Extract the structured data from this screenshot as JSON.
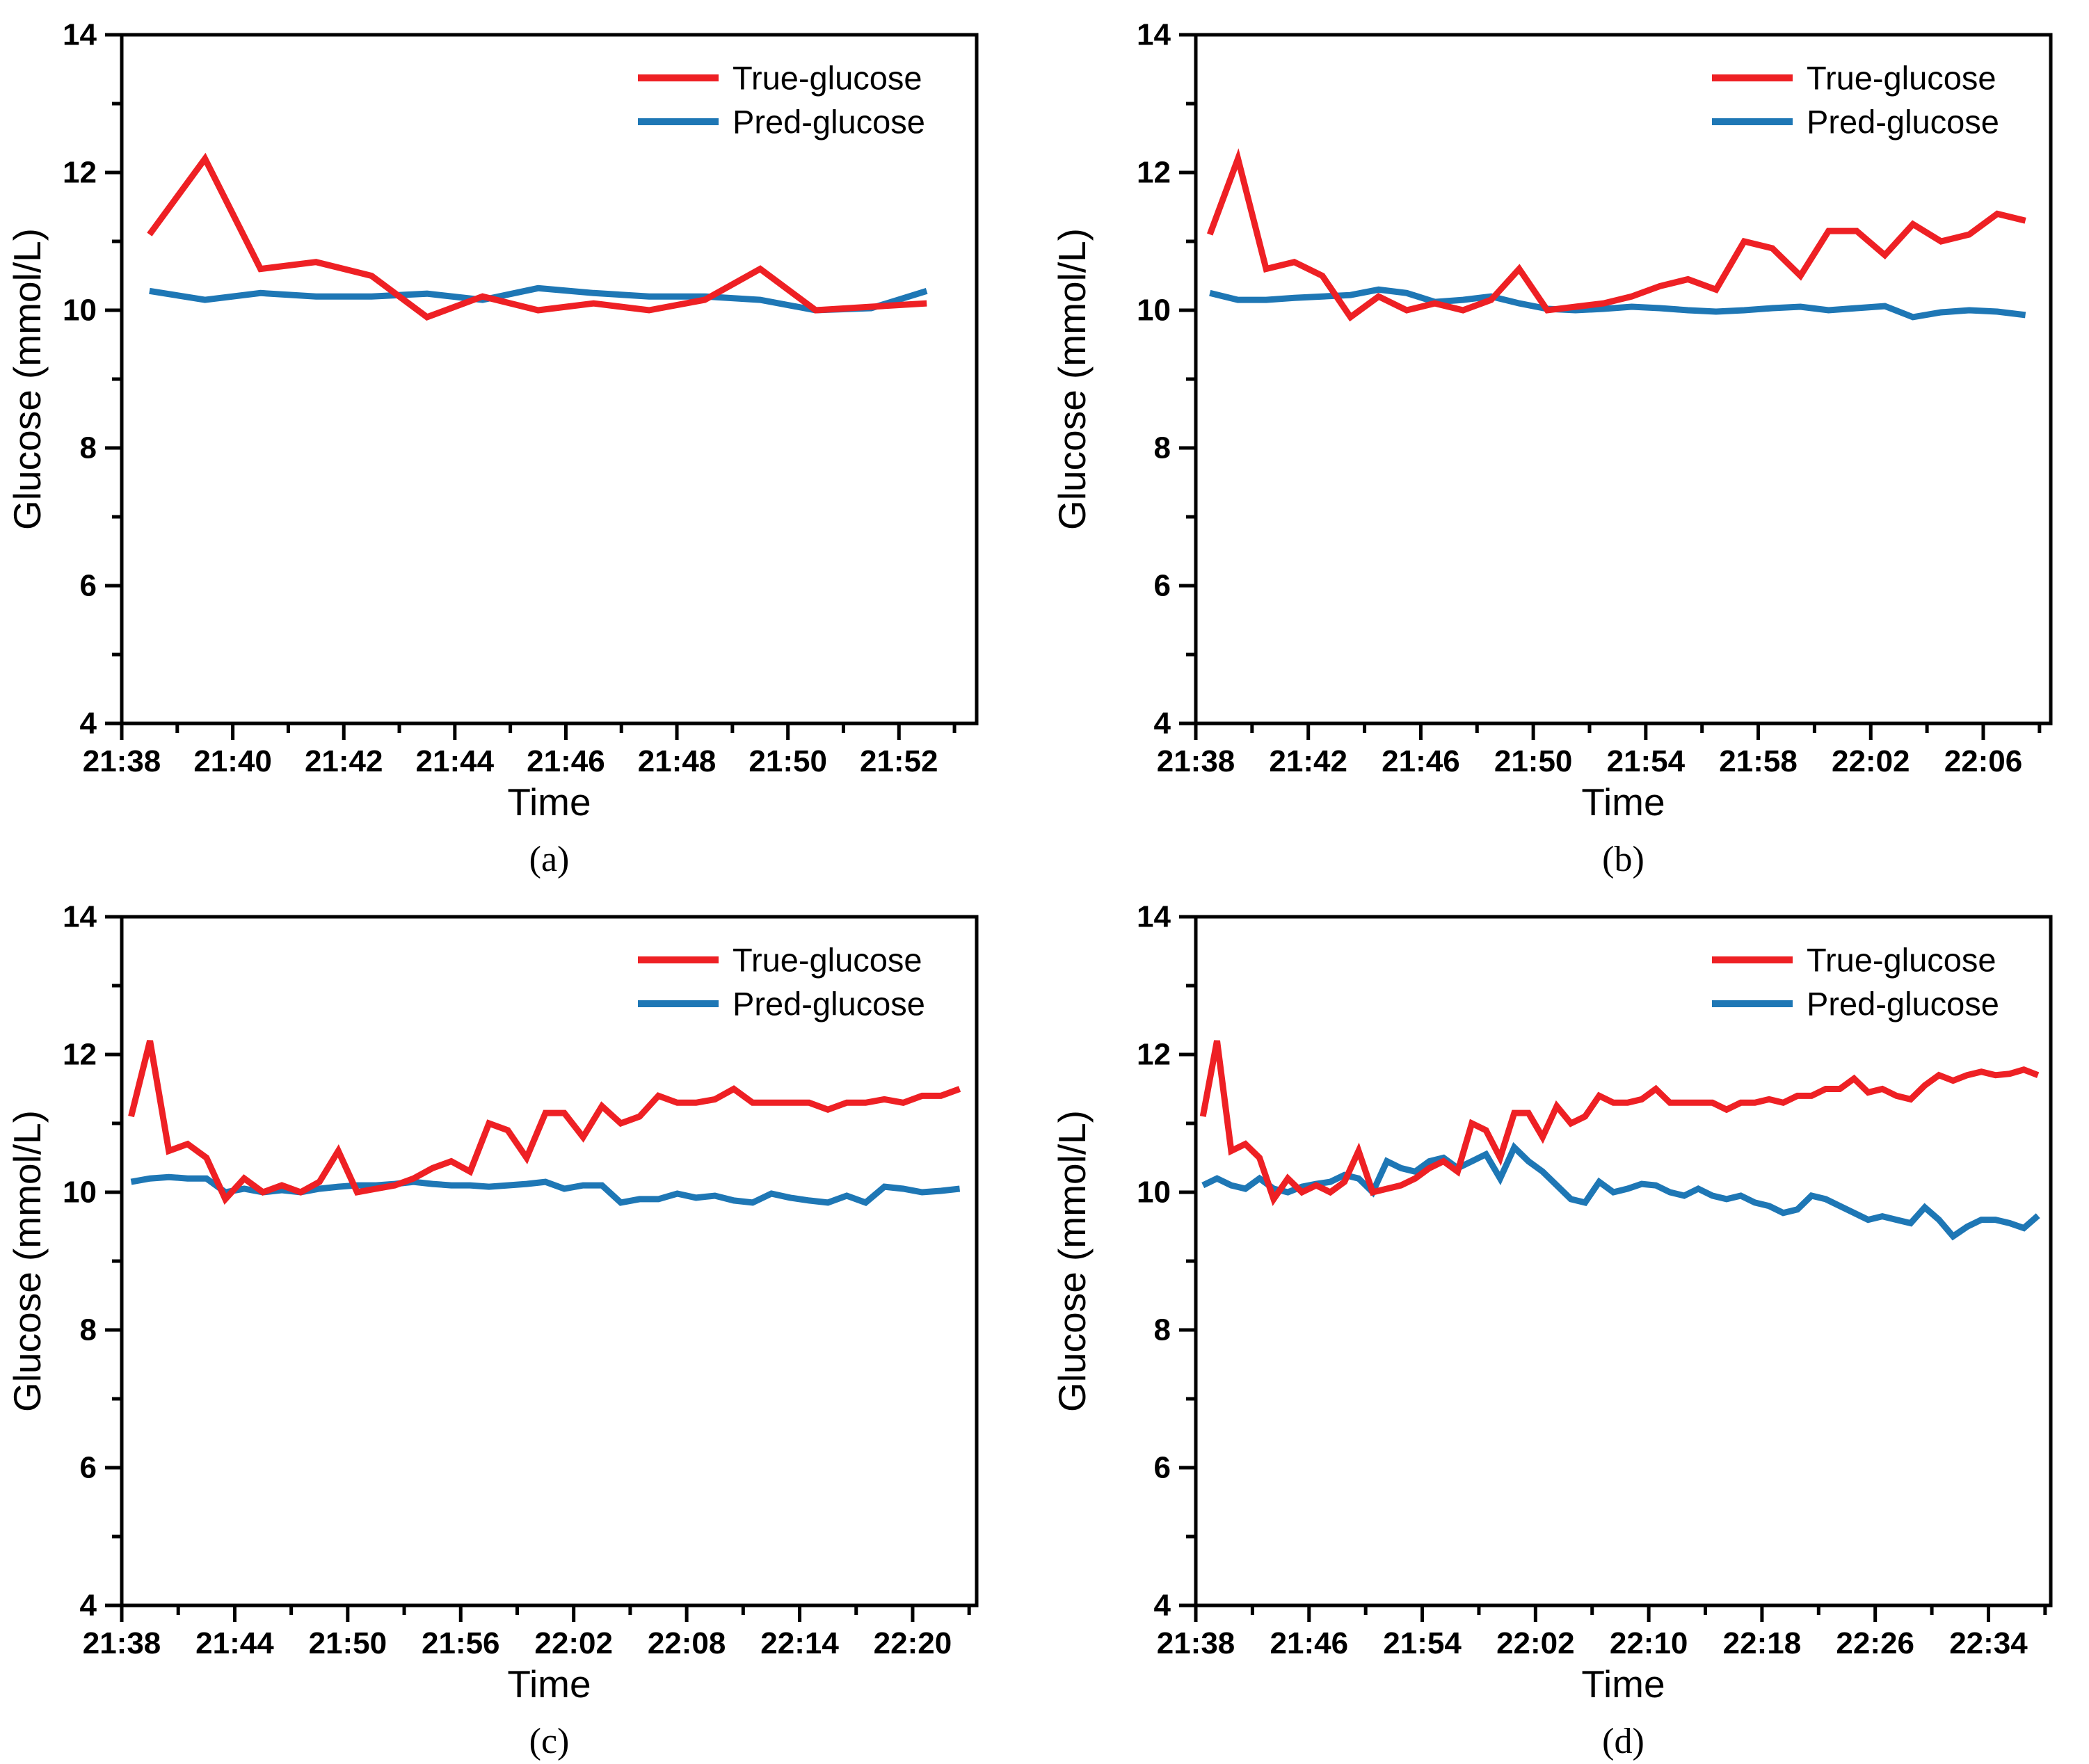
{
  "page": {
    "background": "#ffffff"
  },
  "colors": {
    "true_glucose": "#ee2024",
    "pred_glucose": "#1e77b5",
    "axis": "#000000",
    "text": "#000000"
  },
  "legend": {
    "position": "top-right",
    "entries": [
      {
        "label": "True-glucose",
        "color_key": "true_glucose"
      },
      {
        "label": "Pred-glucose",
        "color_key": "pred_glucose"
      }
    ]
  },
  "axes_common": {
    "x_label": "Time",
    "y_label": "Glucose (mmol/L)",
    "y_min": 4,
    "y_max": 14,
    "y_major_ticks": [
      4,
      6,
      8,
      10,
      12,
      14
    ],
    "y_minor_ticks": [
      5,
      7,
      9,
      11,
      13
    ],
    "grid": false
  },
  "chart_data": [
    {
      "panel": "a",
      "caption": "(a)",
      "type": "line",
      "title": "",
      "xlabel": "Time",
      "ylabel": "Glucose (mmol/L)",
      "ylim": [
        4,
        14
      ],
      "x_start": "21:38",
      "sample_interval_min": 1,
      "first_sample_offset_min": 0.5,
      "x_axis_span_min": 15.4,
      "x_major_step_min": 2,
      "x_tick_labels": [
        "21:38",
        "21:40",
        "21:42",
        "21:44",
        "21:46",
        "21:48",
        "21:50",
        "21:52"
      ],
      "series": [
        {
          "name": "True-glucose",
          "color_key": "true_glucose",
          "values": [
            11.1,
            12.2,
            10.6,
            10.7,
            10.5,
            9.9,
            10.2,
            10.0,
            10.1,
            10.0,
            10.15,
            10.6,
            10.0,
            10.05,
            10.1
          ]
        },
        {
          "name": "Pred-glucose",
          "color_key": "pred_glucose",
          "values": [
            10.28,
            10.15,
            10.25,
            10.2,
            10.2,
            10.24,
            10.15,
            10.32,
            10.25,
            10.2,
            10.2,
            10.15,
            10.0,
            10.03,
            10.28
          ]
        }
      ]
    },
    {
      "panel": "b",
      "caption": "(b)",
      "type": "line",
      "title": "",
      "xlabel": "Time",
      "ylabel": "Glucose (mmol/L)",
      "ylim": [
        4,
        14
      ],
      "x_start": "21:38",
      "sample_interval_min": 1,
      "first_sample_offset_min": 0.5,
      "x_axis_span_min": 30.4,
      "x_major_step_min": 4,
      "x_tick_labels": [
        "21:38",
        "21:42",
        "21:46",
        "21:50",
        "21:54",
        "21:58",
        "22:02",
        "22:06"
      ],
      "series": [
        {
          "name": "True-glucose",
          "color_key": "true_glucose",
          "values": [
            11.1,
            12.2,
            10.6,
            10.7,
            10.5,
            9.9,
            10.2,
            10.0,
            10.1,
            10.0,
            10.15,
            10.6,
            10.0,
            10.05,
            10.1,
            10.2,
            10.35,
            10.45,
            10.3,
            11.0,
            10.9,
            10.5,
            11.15,
            11.15,
            10.8,
            11.25,
            11.0,
            11.1,
            11.4,
            11.3
          ]
        },
        {
          "name": "Pred-glucose",
          "color_key": "pred_glucose",
          "values": [
            10.25,
            10.15,
            10.15,
            10.18,
            10.2,
            10.22,
            10.3,
            10.25,
            10.12,
            10.15,
            10.2,
            10.1,
            10.02,
            10.0,
            10.02,
            10.05,
            10.03,
            10.0,
            9.98,
            10.0,
            10.03,
            10.05,
            10.0,
            10.03,
            10.06,
            9.9,
            9.97,
            10.0,
            9.98,
            9.93
          ]
        }
      ]
    },
    {
      "panel": "c",
      "caption": "(c)",
      "type": "line",
      "title": "",
      "xlabel": "Time",
      "ylabel": "Glucose (mmol/L)",
      "ylim": [
        4,
        14
      ],
      "x_start": "21:38",
      "sample_interval_min": 1,
      "first_sample_offset_min": 0.5,
      "x_axis_span_min": 45.4,
      "x_major_step_min": 6,
      "x_tick_labels": [
        "21:38",
        "21:44",
        "21:50",
        "21:56",
        "22:02",
        "22:08",
        "22:14",
        "22:20"
      ],
      "series": [
        {
          "name": "True-glucose",
          "color_key": "true_glucose",
          "values": [
            11.1,
            12.2,
            10.6,
            10.7,
            10.5,
            9.9,
            10.2,
            10.0,
            10.1,
            10.0,
            10.15,
            10.6,
            10.0,
            10.05,
            10.1,
            10.2,
            10.35,
            10.45,
            10.3,
            11.0,
            10.9,
            10.5,
            11.15,
            11.15,
            10.8,
            11.25,
            11.0,
            11.1,
            11.4,
            11.3,
            11.3,
            11.35,
            11.5,
            11.3,
            11.3,
            11.3,
            11.3,
            11.2,
            11.3,
            11.3,
            11.35,
            11.3,
            11.4,
            11.4,
            11.5
          ]
        },
        {
          "name": "Pred-glucose",
          "color_key": "pred_glucose",
          "values": [
            10.15,
            10.2,
            10.22,
            10.2,
            10.2,
            10.0,
            10.05,
            10.0,
            10.03,
            10.0,
            10.05,
            10.08,
            10.1,
            10.1,
            10.12,
            10.15,
            10.12,
            10.1,
            10.1,
            10.08,
            10.1,
            10.12,
            10.15,
            10.05,
            10.1,
            10.1,
            9.85,
            9.9,
            9.9,
            9.98,
            9.92,
            9.95,
            9.88,
            9.85,
            9.98,
            9.92,
            9.88,
            9.85,
            9.95,
            9.85,
            10.08,
            10.05,
            10.0,
            10.02,
            10.05
          ]
        }
      ]
    },
    {
      "panel": "d",
      "caption": "(d)",
      "type": "line",
      "title": "",
      "xlabel": "Time",
      "ylabel": "Glucose (mmol/L)",
      "ylim": [
        4,
        14
      ],
      "x_start": "21:38",
      "sample_interval_min": 1,
      "first_sample_offset_min": 0.5,
      "x_axis_span_min": 60.4,
      "x_major_step_min": 8,
      "x_tick_labels": [
        "21:38",
        "21:46",
        "21:54",
        "22:02",
        "22:10",
        "22:18",
        "22:26",
        "22:34"
      ],
      "series": [
        {
          "name": "True-glucose",
          "color_key": "true_glucose",
          "values": [
            11.1,
            12.2,
            10.6,
            10.7,
            10.5,
            9.9,
            10.2,
            10.0,
            10.1,
            10.0,
            10.15,
            10.6,
            10.0,
            10.05,
            10.1,
            10.2,
            10.35,
            10.45,
            10.3,
            11.0,
            10.9,
            10.5,
            11.15,
            11.15,
            10.8,
            11.25,
            11.0,
            11.1,
            11.4,
            11.3,
            11.3,
            11.35,
            11.5,
            11.3,
            11.3,
            11.3,
            11.3,
            11.2,
            11.3,
            11.3,
            11.35,
            11.3,
            11.4,
            11.4,
            11.5,
            11.5,
            11.65,
            11.45,
            11.5,
            11.4,
            11.35,
            11.55,
            11.7,
            11.62,
            11.7,
            11.75,
            11.7,
            11.72,
            11.78,
            11.7
          ]
        },
        {
          "name": "Pred-glucose",
          "color_key": "pred_glucose",
          "values": [
            10.1,
            10.2,
            10.1,
            10.05,
            10.2,
            10.05,
            10.0,
            10.08,
            10.12,
            10.15,
            10.25,
            10.2,
            10.0,
            10.45,
            10.35,
            10.3,
            10.45,
            10.5,
            10.35,
            10.45,
            10.55,
            10.2,
            10.65,
            10.45,
            10.3,
            10.1,
            9.9,
            9.85,
            10.15,
            10.0,
            10.05,
            10.12,
            10.1,
            10.0,
            9.95,
            10.05,
            9.95,
            9.9,
            9.95,
            9.85,
            9.8,
            9.7,
            9.75,
            9.95,
            9.9,
            9.8,
            9.7,
            9.6,
            9.65,
            9.6,
            9.55,
            9.78,
            9.6,
            9.36,
            9.5,
            9.6,
            9.6,
            9.55,
            9.48,
            9.66
          ]
        }
      ]
    }
  ]
}
